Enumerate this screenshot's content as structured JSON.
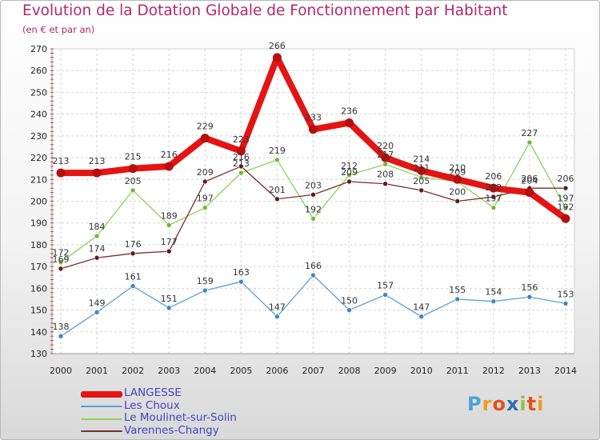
{
  "title": "Evolution de la Dotation Globale de Fonctionnement par Habitant",
  "subtitle": "(en € et par an)",
  "logo": {
    "letters": [
      "P",
      "r",
      "o",
      "x",
      "i",
      "t",
      "i"
    ],
    "colors": [
      "#4aa3d8",
      "#f29a1c",
      "#e8501a",
      "#2f6db5",
      "#8cc63f",
      "#e8501a",
      "#f29a1c"
    ]
  },
  "chart_data": {
    "type": "line",
    "title": "Evolution de la Dotation Globale de Fonctionnement par Habitant",
    "subtitle": "(en € et par an)",
    "x": [
      "2000",
      "2001",
      "2002",
      "2003",
      "2004",
      "2005",
      "2006",
      "2007",
      "2008",
      "2009",
      "2010",
      "2011",
      "2012",
      "2013",
      "2014"
    ],
    "ylim": [
      130,
      270
    ],
    "yticks": [
      130,
      140,
      150,
      160,
      170,
      180,
      190,
      200,
      210,
      220,
      230,
      240,
      250,
      260,
      270
    ],
    "grid": true,
    "legend": "bottom-left",
    "series": [
      {
        "name": "LANGESSE",
        "color": "#e41414",
        "marker": "#b50f0f",
        "width": 8,
        "values": [
          213,
          213,
          215,
          216,
          229,
          223,
          266,
          233,
          236,
          220,
          214,
          210,
          206,
          204,
          192
        ]
      },
      {
        "name": "Les Choux",
        "color": "#5a9fd8",
        "marker": "#3f86c4",
        "width": 1.3,
        "values": [
          138,
          149,
          161,
          151,
          159,
          163,
          147,
          166,
          150,
          157,
          147,
          155,
          154,
          156,
          153
        ]
      },
      {
        "name": "Le Moulinet-sur-Solin",
        "color": "#8cd25a",
        "marker": "#6cbb35",
        "width": 1.3,
        "values": [
          172,
          184,
          205,
          189,
          197,
          213,
          219,
          192,
          212,
          217,
          211,
          209,
          197,
          227,
          197
        ]
      },
      {
        "name": "Varennes-Changy",
        "color": "#7a2e2e",
        "marker": "#5c1c1c",
        "width": 1.3,
        "values": [
          169,
          174,
          176,
          177,
          209,
          216,
          201,
          203,
          209,
          208,
          205,
          200,
          202,
          206,
          206
        ]
      }
    ]
  }
}
